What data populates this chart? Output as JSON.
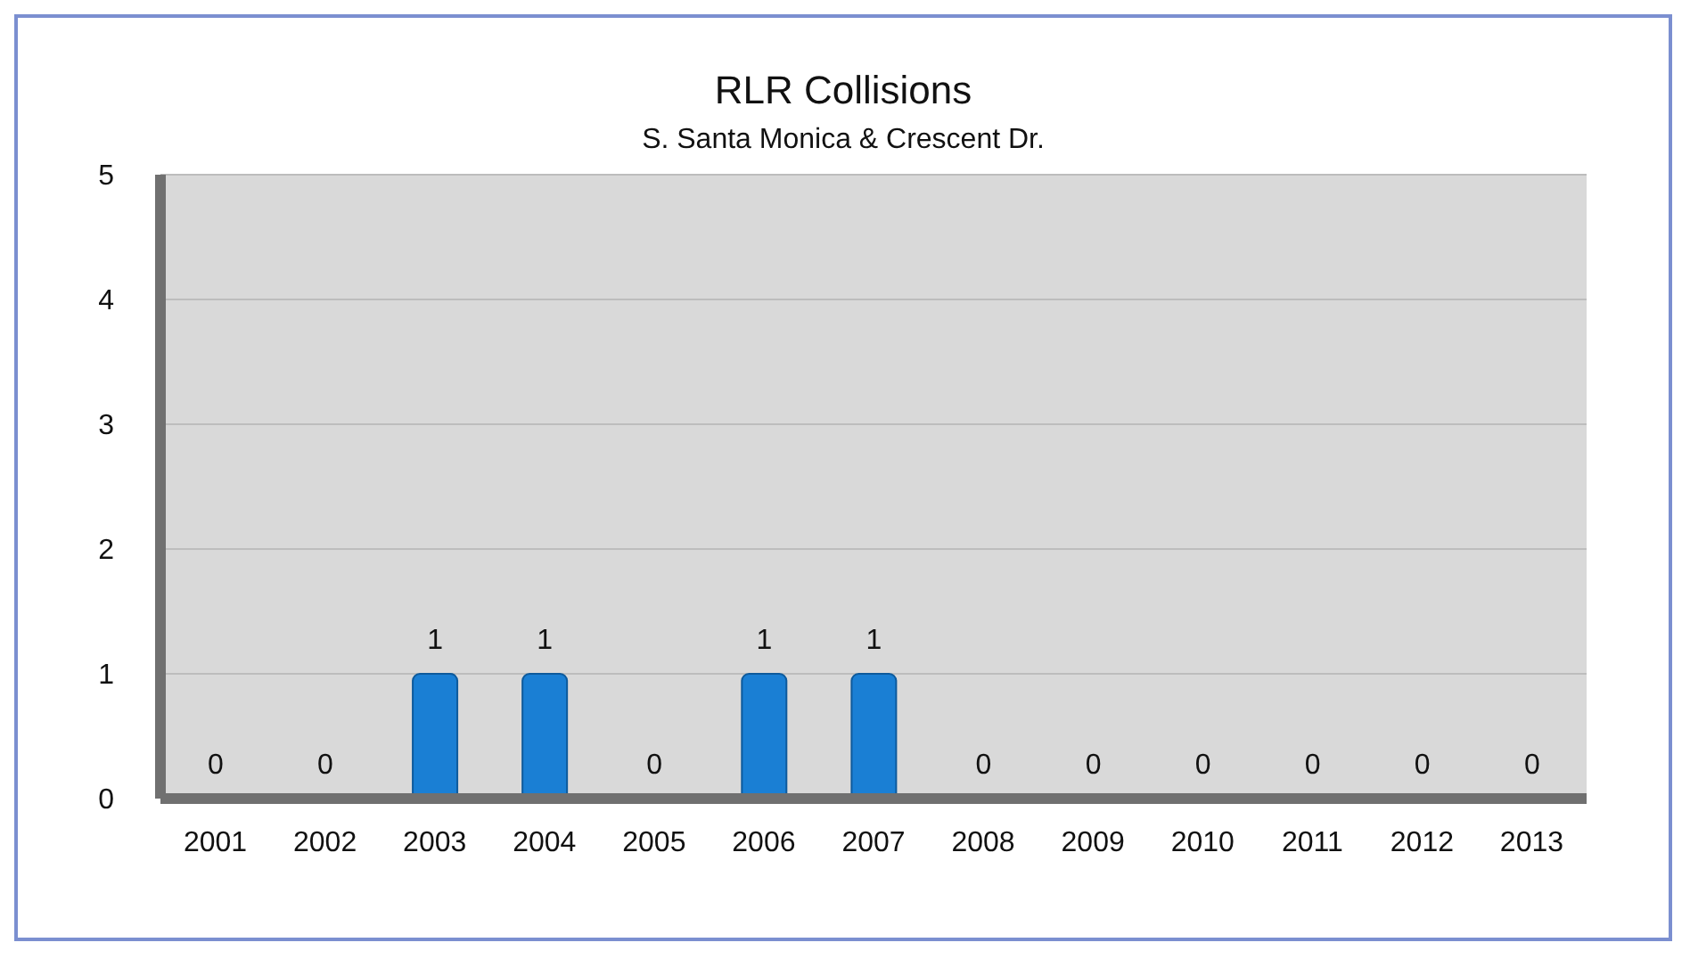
{
  "chart_data": {
    "type": "bar",
    "title": "RLR Collisions",
    "subtitle": "S. Santa Monica & Crescent Dr.",
    "categories": [
      "2001",
      "2002",
      "2003",
      "2004",
      "2005",
      "2006",
      "2007",
      "2008",
      "2009",
      "2010",
      "2011",
      "2012",
      "2013"
    ],
    "values": [
      0,
      0,
      1,
      1,
      0,
      1,
      1,
      0,
      0,
      0,
      0,
      0,
      0
    ],
    "color": "#1a7fd4",
    "ylim": [
      0,
      5
    ],
    "yticks": [
      0,
      1,
      2,
      3,
      4,
      5
    ],
    "grid": "y",
    "data_labels": true
  }
}
